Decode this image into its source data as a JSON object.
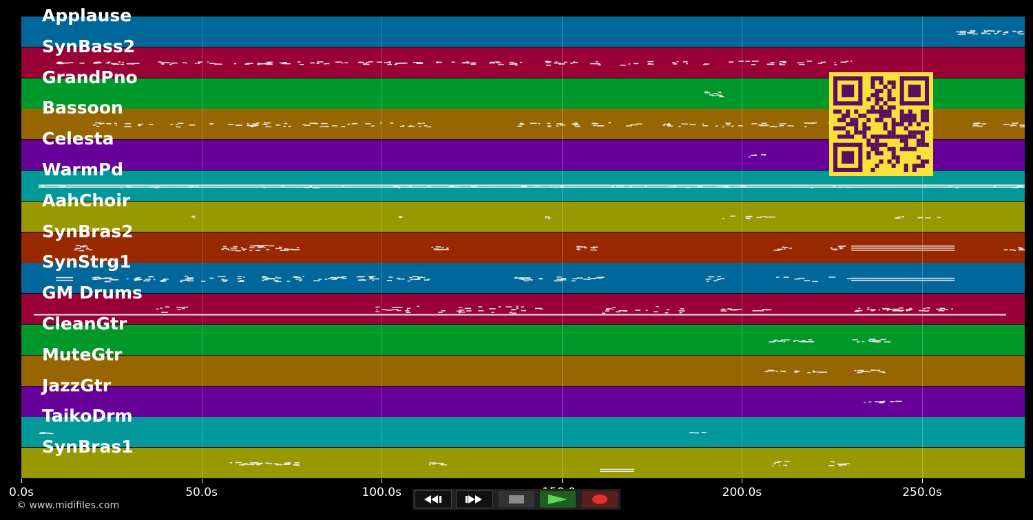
{
  "tracks": [
    {
      "name": "Applause",
      "color": "#00679a"
    },
    {
      "name": "SynBass2",
      "color": "#980036"
    },
    {
      "name": "GrandPno",
      "color": "#00982a"
    },
    {
      "name": "Bassoon",
      "color": "#986600"
    },
    {
      "name": "Celesta",
      "color": "#660098"
    },
    {
      "name": "WarmPd",
      "color": "#009898"
    },
    {
      "name": "AahChoir",
      "color": "#989800"
    },
    {
      "name": "SynBras2",
      "color": "#982800"
    },
    {
      "name": "SynStrg1",
      "color": "#00679a"
    },
    {
      "name": "GM Drums",
      "color": "#980036"
    },
    {
      "name": "CleanGtr",
      "color": "#00982a"
    },
    {
      "name": "MuteGtr",
      "color": "#986600"
    },
    {
      "name": "JazzGtr",
      "color": "#660098"
    },
    {
      "name": "TaikoDrm",
      "color": "#009898"
    },
    {
      "name": "SynBras1",
      "color": "#989800"
    }
  ],
  "timeline": {
    "ticks": [
      {
        "label": "0.0s",
        "seconds": 0
      },
      {
        "label": "50.0s",
        "seconds": 50
      },
      {
        "label": "100.0s",
        "seconds": 100
      },
      {
        "label": "150.0s",
        "seconds": 150
      },
      {
        "label": "200.0s",
        "seconds": 200
      },
      {
        "label": "250.0s",
        "seconds": 250
      }
    ],
    "duration_seconds": 278
  },
  "transport": {
    "rewind": "rewind-icon",
    "fast_forward": "fast-forward-icon",
    "stop": "stop-icon",
    "play": "play-icon",
    "record": "record-icon"
  },
  "copyright": "© www.midifiles.com",
  "qr_code": "qr-code-icon"
}
